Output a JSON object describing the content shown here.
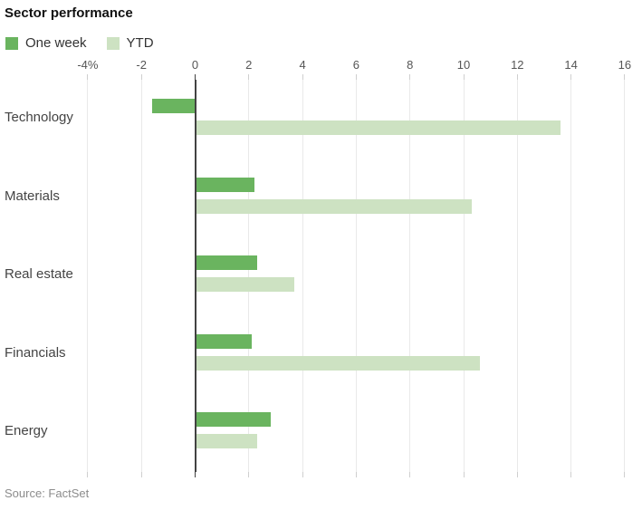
{
  "title": "Sector performance",
  "source": "Source: FactSet",
  "colors": {
    "one_week": "#6ab45f",
    "ytd": "#cde2c2",
    "zero_axis": "#424242",
    "gridline": "#e9e9e9",
    "tick": "#cfcfcf"
  },
  "chart_data": {
    "type": "bar",
    "orientation": "horizontal",
    "title": "Sector performance",
    "xlabel": "",
    "ylabel": "",
    "categories": [
      "Technology",
      "Materials",
      "Real estate",
      "Financials",
      "Energy"
    ],
    "series": [
      {
        "name": "One week",
        "color_key": "one_week",
        "values": [
          -1.6,
          2.2,
          2.3,
          2.1,
          2.8
        ]
      },
      {
        "name": "YTD",
        "color_key": "ytd",
        "values": [
          13.6,
          10.3,
          3.7,
          10.6,
          2.3
        ]
      }
    ],
    "xlim": [
      -4,
      16
    ],
    "x_ticks": [
      -4,
      -2,
      0,
      2,
      4,
      6,
      8,
      10,
      12,
      14,
      16
    ],
    "x_tick_labels": [
      "-4%",
      "-2",
      "0",
      "2",
      "4",
      "6",
      "8",
      "10",
      "12",
      "14",
      "16"
    ],
    "grid": true,
    "legend_position": "top",
    "axis_position": "top",
    "source_label": "Source: FactSet"
  }
}
